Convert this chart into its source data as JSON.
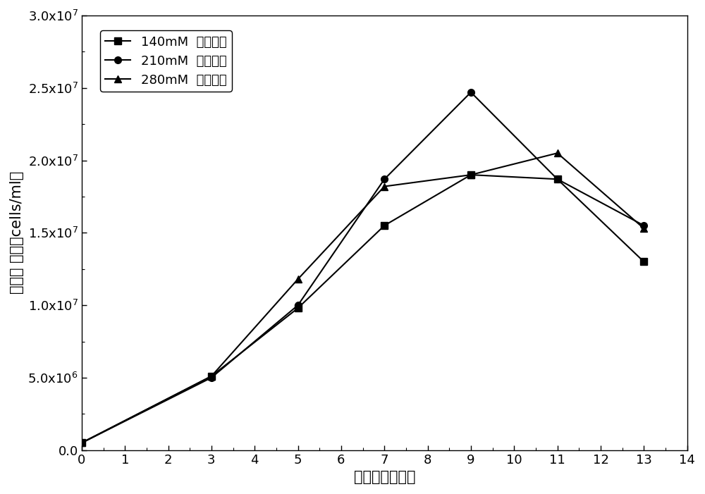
{
  "series": [
    {
      "label": "140mM  半胱氨酸",
      "x": [
        0,
        3,
        5,
        7,
        9,
        11,
        13
      ],
      "y": [
        500000.0,
        5100000.0,
        9800000.0,
        15500000.0,
        19000000.0,
        18700000.0,
        13000000.0
      ],
      "marker": "s",
      "color": "#000000"
    },
    {
      "label": "210mM  半胱氨酸",
      "x": [
        0,
        3,
        5,
        7,
        9,
        11,
        13
      ],
      "y": [
        500000.0,
        5000000.0,
        10000000.0,
        18700000.0,
        24700000.0,
        18700000.0,
        15500000.0
      ],
      "marker": "o",
      "color": "#000000"
    },
    {
      "label": "280mM  半胱氨酸",
      "x": [
        0,
        3,
        5,
        7,
        9,
        11,
        13
      ],
      "y": [
        500000.0,
        5100000.0,
        11800000.0,
        18200000.0,
        19000000.0,
        20500000.0,
        15300000.0
      ],
      "marker": "^",
      "color": "#000000"
    }
  ],
  "xlabel": "培养天数（天）",
  "ylabel": "活细胞 密度（cells/ml）",
  "xlim": [
    0,
    14
  ],
  "ylim": [
    0,
    30000000.0
  ],
  "xticks": [
    0,
    1,
    2,
    3,
    4,
    5,
    6,
    7,
    8,
    9,
    10,
    11,
    12,
    13,
    14
  ],
  "yticks": [
    0,
    5000000.0,
    10000000.0,
    15000000.0,
    20000000.0,
    25000000.0,
    30000000.0
  ],
  "background_color": "#ffffff",
  "linewidth": 1.5,
  "markersize": 7,
  "font_size_tick": 13,
  "font_size_label": 15,
  "font_size_legend": 13
}
